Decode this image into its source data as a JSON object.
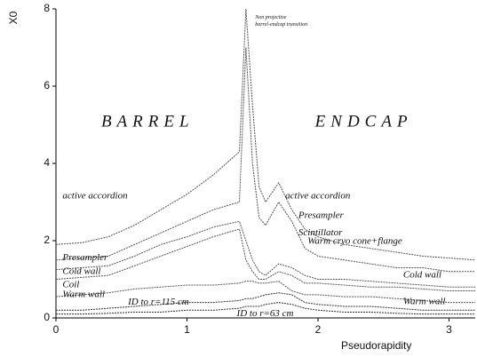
{
  "chart_data": {
    "type": "line",
    "xlabel": "Pseudorapidity",
    "ylabel": "X0",
    "xlim": [
      0,
      3.2
    ],
    "ylim": [
      0,
      8
    ],
    "xticks": [
      0,
      1,
      2,
      3
    ],
    "yticks": [
      0,
      2,
      4,
      6,
      8
    ],
    "x": [
      0,
      0.2,
      0.4,
      0.6,
      0.8,
      1.0,
      1.2,
      1.4,
      1.45,
      1.5,
      1.55,
      1.6,
      1.7,
      1.8,
      1.9,
      2.0,
      2.2,
      2.4,
      2.6,
      2.8,
      3.0,
      3.2
    ],
    "series": [
      {
        "color": "#555555",
        "values": [
          1.9,
          1.95,
          2.1,
          2.4,
          2.8,
          3.2,
          3.7,
          4.3,
          8.0,
          5.5,
          3.4,
          3.0,
          3.5,
          2.8,
          2.3,
          2.1,
          1.9,
          1.8,
          1.7,
          1.6,
          1.55,
          1.5
        ]
      },
      {
        "color": "#555555",
        "values": [
          1.5,
          1.55,
          1.6,
          1.9,
          2.2,
          2.5,
          2.8,
          3.0,
          7.0,
          4.0,
          2.6,
          2.4,
          3.0,
          2.5,
          1.8,
          1.6,
          1.5,
          1.4,
          1.3,
          1.3,
          1.2,
          1.2
        ]
      },
      {
        "color": "#555555",
        "values": [
          1.25,
          1.3,
          1.35,
          1.6,
          1.9,
          2.1,
          2.35,
          2.5,
          2.0,
          1.5,
          1.2,
          1.1,
          1.4,
          1.3,
          1.1,
          1.0,
          1.0,
          0.95,
          0.9,
          0.85,
          0.8,
          0.8
        ]
      },
      {
        "color": "#555555",
        "values": [
          1.0,
          1.05,
          1.1,
          1.35,
          1.6,
          1.85,
          2.1,
          2.3,
          1.5,
          1.2,
          1.0,
          1.0,
          1.2,
          1.1,
          0.9,
          0.9,
          0.85,
          0.8,
          0.8,
          0.75,
          0.7,
          0.7
        ]
      },
      {
        "color": "#555555",
        "values": [
          0.55,
          0.6,
          0.65,
          0.75,
          0.8,
          0.85,
          0.85,
          0.9,
          0.95,
          0.95,
          0.9,
          0.9,
          0.95,
          0.7,
          0.6,
          0.6,
          0.55,
          0.55,
          0.5,
          0.45,
          0.4,
          0.4
        ]
      },
      {
        "color": "#333333",
        "values": [
          0.2,
          0.2,
          0.25,
          0.3,
          0.35,
          0.4,
          0.4,
          0.45,
          0.5,
          0.5,
          0.55,
          0.6,
          0.65,
          0.6,
          0.4,
          0.35,
          0.3,
          0.3,
          0.25,
          0.2,
          0.2,
          0.2
        ]
      },
      {
        "color": "#333333",
        "values": [
          0.1,
          0.1,
          0.12,
          0.15,
          0.15,
          0.2,
          0.2,
          0.25,
          0.3,
          0.3,
          0.3,
          0.35,
          0.4,
          0.35,
          0.25,
          0.2,
          0.15,
          0.15,
          0.12,
          0.1,
          0.1,
          0.1
        ]
      }
    ],
    "annotations": [
      {
        "text": "BARREL",
        "x": 0.7,
        "y": 5.05,
        "style": "big"
      },
      {
        "text": "ENDCAP",
        "x": 2.35,
        "y": 5.05,
        "style": "big"
      },
      {
        "text": "active accordion",
        "x": 0.05,
        "y": 3.15
      },
      {
        "text": "active accordion",
        "x": 1.75,
        "y": 3.15
      },
      {
        "text": "Presampler",
        "x": 0.05,
        "y": 1.55
      },
      {
        "text": "Presampler",
        "x": 1.85,
        "y": 2.65
      },
      {
        "text": "Scintillator",
        "x": 1.85,
        "y": 2.2
      },
      {
        "text": "Warm cryo cone+flange",
        "x": 1.92,
        "y": 1.98
      },
      {
        "text": "Cold wall",
        "x": 0.05,
        "y": 1.2
      },
      {
        "text": "Cold wall",
        "x": 2.65,
        "y": 1.1
      },
      {
        "text": "Coil",
        "x": 0.05,
        "y": 0.85
      },
      {
        "text": "Warm wall",
        "x": 0.05,
        "y": 0.6
      },
      {
        "text": "Warm wall",
        "x": 2.65,
        "y": 0.42
      },
      {
        "text": "ID to r=115 cm",
        "x": 0.55,
        "y": 0.4
      },
      {
        "text": "ID to r=63 cm",
        "x": 1.38,
        "y": 0.1
      },
      {
        "text": "Non projective",
        "x": 1.52,
        "y": 7.78,
        "style": "tiny"
      },
      {
        "text": "barrel-endcap transition",
        "x": 1.52,
        "y": 7.6,
        "style": "tiny"
      }
    ]
  }
}
